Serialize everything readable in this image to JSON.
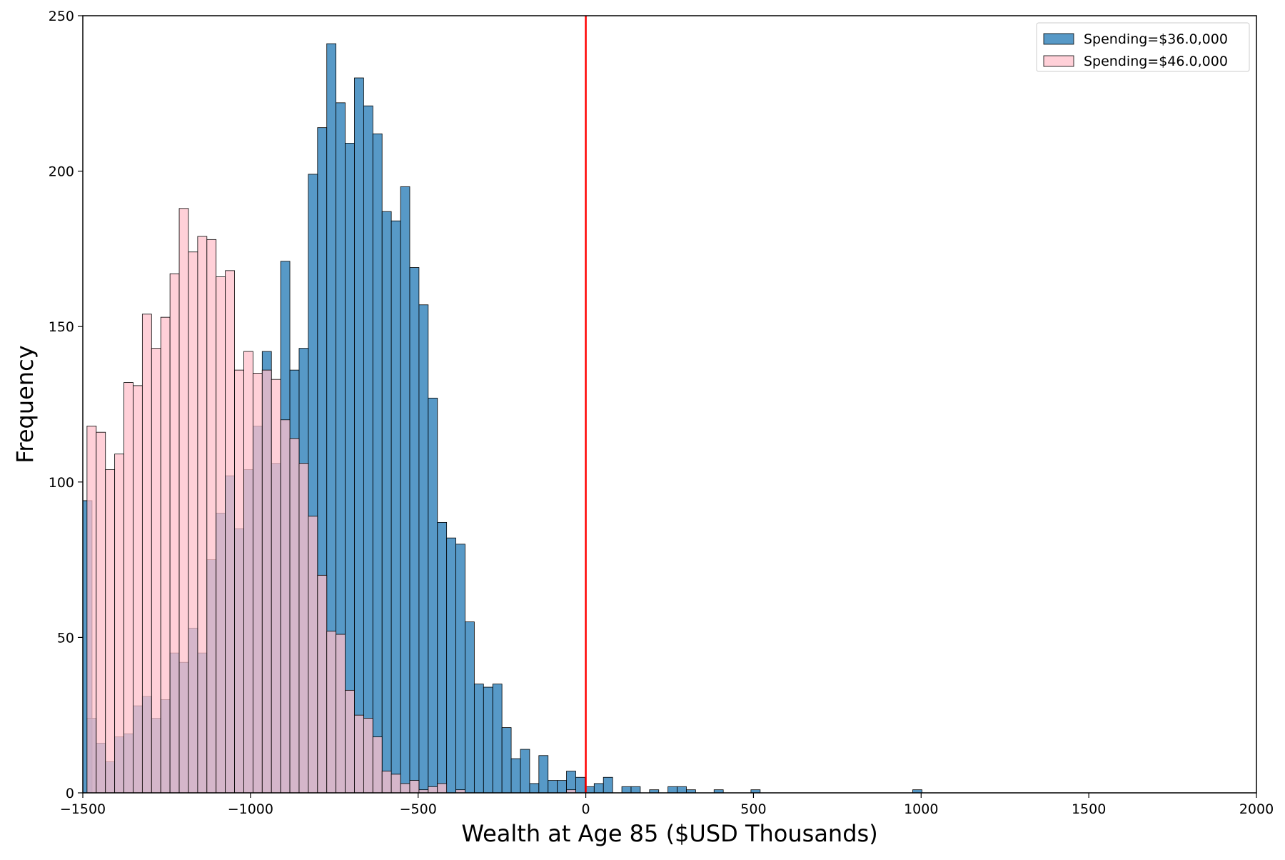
{
  "chart_data": {
    "type": "bar",
    "xlabel": "Wealth at Age 85 ($USD Thousands)",
    "ylabel": "Frequency",
    "xlim": [
      -1500,
      2000
    ],
    "ylim": [
      0,
      250
    ],
    "xticks": [
      -1500,
      -1000,
      -500,
      0,
      500,
      1000,
      1500,
      2000
    ],
    "yticks": [
      0,
      50,
      100,
      150,
      200,
      250
    ],
    "xtick_labels": [
      "−1500",
      "−1000",
      "−500",
      "0",
      "500",
      "1000",
      "1500",
      "2000"
    ],
    "ytick_labels": [
      "0",
      "50",
      "100",
      "150",
      "200",
      "250"
    ],
    "grid": false,
    "legend_position": "top-right",
    "reference_line": {
      "x": 0,
      "color": "#ff0000"
    },
    "bin_width": 27.5,
    "series": [
      {
        "name": "Spending=$36.0,000",
        "color": "#1f77b4",
        "fill": "rgba(31,119,180,0.75)",
        "bins": [
          [
            -1500,
            94
          ],
          [
            -1487.5,
            24
          ],
          [
            -1460,
            16
          ],
          [
            -1432.5,
            10
          ],
          [
            -1405,
            18
          ],
          [
            -1377.5,
            19
          ],
          [
            -1350,
            28
          ],
          [
            -1322.5,
            31
          ],
          [
            -1295,
            24
          ],
          [
            -1267.5,
            30
          ],
          [
            -1240,
            45
          ],
          [
            -1212.5,
            42
          ],
          [
            -1185,
            53
          ],
          [
            -1157.5,
            45
          ],
          [
            -1130,
            75
          ],
          [
            -1102.5,
            90
          ],
          [
            -1075,
            102
          ],
          [
            -1047.5,
            85
          ],
          [
            -1020,
            104
          ],
          [
            -992.5,
            118
          ],
          [
            -965,
            142
          ],
          [
            -937.5,
            106
          ],
          [
            -910,
            171
          ],
          [
            -882.5,
            136
          ],
          [
            -855,
            143
          ],
          [
            -827.5,
            199
          ],
          [
            -800,
            214
          ],
          [
            -772.5,
            241
          ],
          [
            -745,
            222
          ],
          [
            -717.5,
            209
          ],
          [
            -690,
            230
          ],
          [
            -662.5,
            221
          ],
          [
            -635,
            212
          ],
          [
            -607.5,
            187
          ],
          [
            -580,
            184
          ],
          [
            -552.5,
            195
          ],
          [
            -525,
            169
          ],
          [
            -497.5,
            157
          ],
          [
            -470,
            127
          ],
          [
            -442.5,
            87
          ],
          [
            -415,
            82
          ],
          [
            -387.5,
            80
          ],
          [
            -360,
            55
          ],
          [
            -332.5,
            35
          ],
          [
            -305,
            34
          ],
          [
            -277.5,
            35
          ],
          [
            -250,
            21
          ],
          [
            -222.5,
            11
          ],
          [
            -195,
            14
          ],
          [
            -167.5,
            3
          ],
          [
            -140,
            12
          ],
          [
            -112.5,
            4
          ],
          [
            -85,
            4
          ],
          [
            -57.5,
            7
          ],
          [
            -30,
            5
          ],
          [
            -2.5,
            2
          ],
          [
            25,
            3
          ],
          [
            52.5,
            5
          ],
          [
            107.5,
            2
          ],
          [
            135,
            2
          ],
          [
            190,
            1
          ],
          [
            245,
            2
          ],
          [
            272.5,
            2
          ],
          [
            300,
            1
          ],
          [
            382.5,
            1
          ],
          [
            492.5,
            1
          ],
          [
            975,
            1
          ]
        ]
      },
      {
        "name": "Spending=$46.0,000",
        "color": "#ffc0cb",
        "fill": "rgba(255,192,203,0.75)",
        "bins": [
          [
            -1487.5,
            118
          ],
          [
            -1460,
            116
          ],
          [
            -1432.5,
            104
          ],
          [
            -1405,
            109
          ],
          [
            -1377.5,
            132
          ],
          [
            -1350,
            131
          ],
          [
            -1322.5,
            154
          ],
          [
            -1295,
            143
          ],
          [
            -1267.5,
            153
          ],
          [
            -1240,
            167
          ],
          [
            -1212.5,
            188
          ],
          [
            -1185,
            174
          ],
          [
            -1157.5,
            179
          ],
          [
            -1130,
            178
          ],
          [
            -1102.5,
            166
          ],
          [
            -1075,
            168
          ],
          [
            -1047.5,
            136
          ],
          [
            -1020,
            142
          ],
          [
            -992.5,
            135
          ],
          [
            -965,
            136
          ],
          [
            -937.5,
            133
          ],
          [
            -910,
            120
          ],
          [
            -882.5,
            114
          ],
          [
            -855,
            106
          ],
          [
            -827.5,
            89
          ],
          [
            -800,
            70
          ],
          [
            -772.5,
            52
          ],
          [
            -745,
            51
          ],
          [
            -717.5,
            33
          ],
          [
            -690,
            25
          ],
          [
            -662.5,
            24
          ],
          [
            -635,
            18
          ],
          [
            -607.5,
            7
          ],
          [
            -580,
            6
          ],
          [
            -552.5,
            3
          ],
          [
            -525,
            4
          ],
          [
            -497.5,
            1
          ],
          [
            -470,
            2
          ],
          [
            -442.5,
            3
          ],
          [
            -387.5,
            1
          ],
          [
            -57.5,
            1
          ]
        ]
      }
    ]
  }
}
